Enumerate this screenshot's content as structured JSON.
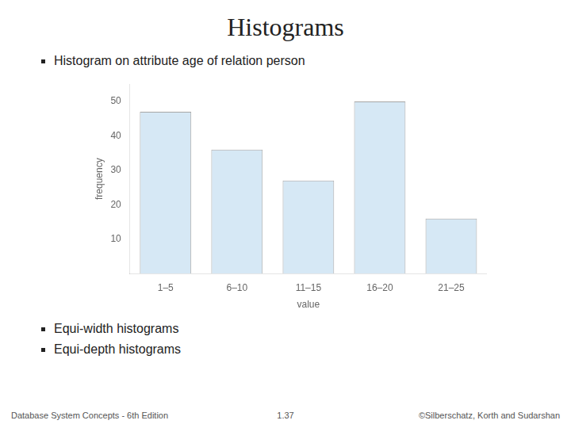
{
  "chart_data": {
    "type": "bar",
    "title": "Histograms",
    "annotations": [
      "Histogram on attribute age of relation person",
      "Equi-width histograms",
      "Equi-depth histograms",
      "Database System Concepts - 6th Edition",
      "1.37",
      "©Silberschatz, Korth and Sudarshan"
    ],
    "categories": [
      "1–5",
      "6–10",
      "11–15",
      "16–20",
      "21–25"
    ],
    "values": [
      47,
      36,
      27,
      50,
      16
    ],
    "color": "#D6E8F5",
    "xlabel": "value",
    "ylabel": "frequency",
    "ylim": [
      0,
      55
    ],
    "yticks": [
      10,
      20,
      30,
      40,
      50
    ],
    "grid": false
  }
}
